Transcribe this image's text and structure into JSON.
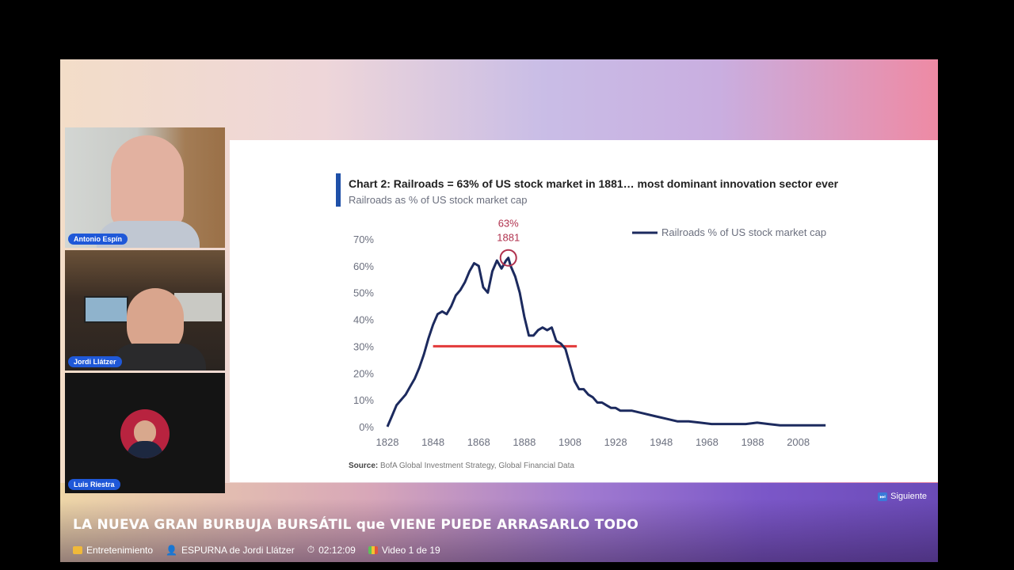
{
  "participants": [
    {
      "name": "Antonio Espín"
    },
    {
      "name": "Jordi Llátzer"
    },
    {
      "name": "Luis Riestra"
    }
  ],
  "chart_data": {
    "type": "line",
    "title": "Chart 2: Railroads = 63% of US stock market in 1881… most dominant innovation sector ever",
    "subtitle": "Railroads as % of US stock market cap",
    "source_label": "Source:",
    "source_text": "BofA Global Investment Strategy, Global Financial Data",
    "xlabel": "",
    "ylabel": "",
    "xlim": [
      1828,
      2022
    ],
    "ylim": [
      0,
      70
    ],
    "x_ticks": [
      "1828",
      "1848",
      "1868",
      "1888",
      "1908",
      "1928",
      "1948",
      "1968",
      "1988",
      "2008"
    ],
    "y_ticks": [
      "0%",
      "10%",
      "20%",
      "30%",
      "40%",
      "50%",
      "60%",
      "70%"
    ],
    "legend": "top-right",
    "grid": false,
    "colors": {
      "line": "#1c2a5e",
      "highlight": "#e23a3a",
      "annotation": "#b0324e"
    },
    "annotation": {
      "value": "63%",
      "year": "1881",
      "x": 1881,
      "y": 63
    },
    "threshold": {
      "y": 30,
      "x_start": 1848,
      "x_end": 1911
    },
    "series": [
      {
        "name": "Railroads % of US stock market cap",
        "x": [
          1828,
          1830,
          1832,
          1834,
          1836,
          1838,
          1840,
          1842,
          1844,
          1846,
          1848,
          1850,
          1852,
          1854,
          1856,
          1858,
          1860,
          1862,
          1864,
          1866,
          1868,
          1870,
          1872,
          1874,
          1876,
          1878,
          1880,
          1881,
          1882,
          1884,
          1886,
          1888,
          1890,
          1892,
          1894,
          1896,
          1898,
          1900,
          1902,
          1904,
          1906,
          1908,
          1910,
          1912,
          1914,
          1916,
          1918,
          1920,
          1922,
          1924,
          1926,
          1928,
          1930,
          1935,
          1940,
          1945,
          1950,
          1955,
          1960,
          1965,
          1970,
          1975,
          1980,
          1985,
          1990,
          1995,
          2000,
          2005,
          2010,
          2015,
          2020
        ],
        "values": [
          0,
          4,
          8,
          10,
          12,
          15,
          18,
          22,
          27,
          33,
          38,
          42,
          43,
          42,
          45,
          49,
          51,
          54,
          58,
          61,
          60,
          52,
          50,
          58,
          62,
          59,
          62,
          63,
          60,
          56,
          50,
          41,
          34,
          34,
          36,
          37,
          36,
          37,
          32,
          31,
          29,
          23,
          17,
          14,
          14,
          12,
          11,
          9,
          9,
          8,
          7,
          7,
          6,
          6,
          5,
          4,
          3,
          2,
          2,
          1.5,
          1,
          1,
          1,
          1,
          1.5,
          1,
          0.5,
          0.5,
          0.5,
          0.5,
          0.5
        ]
      }
    ]
  },
  "bottom_bar": {
    "next_label": "Siguiente",
    "video_title": "LA NUEVA GRAN BURBUJA BURSÁTIL que VIENE PUEDE ARRASARLO TODO",
    "category": "Entretenimiento",
    "channel": "ESPURNA de Jordi Llátzer",
    "duration": "02:12:09",
    "video_position": "Video 1 de 19"
  }
}
